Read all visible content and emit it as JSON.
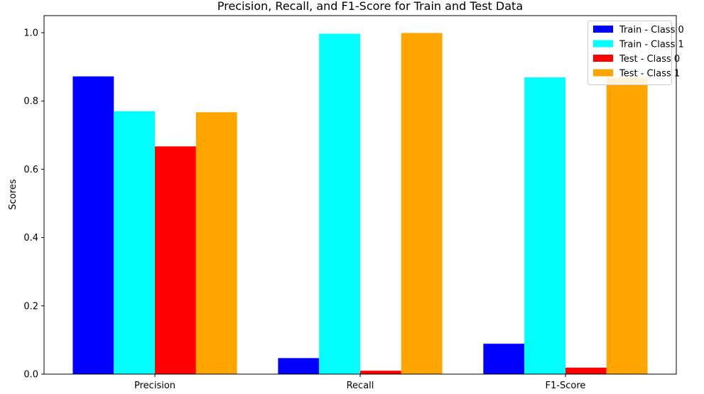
{
  "chart_data": {
    "type": "bar",
    "title": "Precision, Recall, and F1-Score for Train and Test Data",
    "xlabel": "",
    "ylabel": "Scores",
    "ylim": [
      0,
      1.05
    ],
    "yticks": [
      "0.0",
      "0.2",
      "0.4",
      "0.6",
      "0.8",
      "1.0"
    ],
    "grid": false,
    "legend_position": "top-right",
    "categories": [
      "Precision",
      "Recall",
      "F1-Score"
    ],
    "series": [
      {
        "name": "Train - Class 0",
        "color": "#0000ff",
        "values": [
          0.872,
          0.047,
          0.089
        ]
      },
      {
        "name": "Train - Class 1",
        "color": "#00ffff",
        "values": [
          0.77,
          0.997,
          0.869
        ]
      },
      {
        "name": "Test - Class 0",
        "color": "#ff0000",
        "values": [
          0.667,
          0.01,
          0.019
        ]
      },
      {
        "name": "Test - Class 1",
        "color": "#ffa500",
        "values": [
          0.767,
          0.999,
          0.868
        ]
      }
    ]
  }
}
